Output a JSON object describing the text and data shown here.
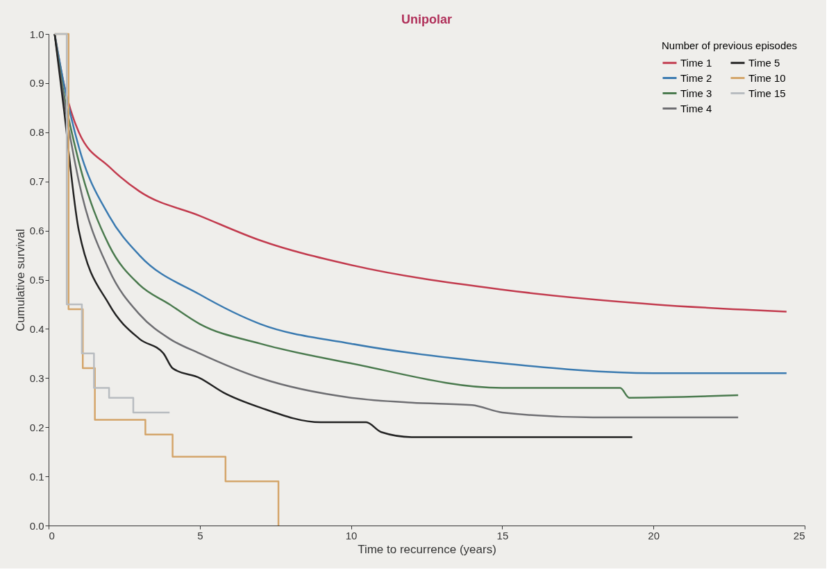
{
  "chart_data": {
    "type": "line",
    "title": "Unipolar",
    "xlabel": "Time to recurrence (years)",
    "ylabel": "Cumulative survival",
    "legend_title": "Number of previous episodes",
    "xlim": [
      0,
      25
    ],
    "xticks": [
      0,
      5,
      10,
      15,
      20,
      25
    ],
    "ylim": [
      0,
      1
    ],
    "yticks": [
      {
        "value": 0,
        "label": "0.0"
      },
      0.1,
      0.2,
      0.3,
      0.4,
      0.5,
      0.6,
      0.7,
      0.8,
      0.9,
      {
        "value": 1,
        "label": "1.0"
      }
    ],
    "grid": false,
    "legend": "top right",
    "marker": "none",
    "line_style": "solid",
    "series": [
      {
        "name": "Time 1",
        "color": "#c23b4e",
        "x": [
          0.2,
          0.5,
          1,
          2,
          3,
          5,
          7,
          10,
          15,
          20,
          24.4
        ],
        "values": [
          1.0,
          0.9,
          0.8,
          0.73,
          0.68,
          0.63,
          0.58,
          0.53,
          0.48,
          0.45,
          0.435
        ]
      },
      {
        "name": "Time 2",
        "color": "#3a7ab0",
        "x": [
          0.2,
          0.5,
          1,
          2,
          3,
          5,
          7,
          10,
          15,
          20,
          24.4
        ],
        "values": [
          1.0,
          0.9,
          0.77,
          0.63,
          0.55,
          0.47,
          0.41,
          0.37,
          0.33,
          0.31,
          0.31
        ]
      },
      {
        "name": "Time 3",
        "color": "#4a7a4e",
        "x": [
          0.2,
          0.5,
          1,
          2,
          3,
          4,
          5,
          7,
          10,
          15,
          18.9,
          19.2,
          22.8
        ],
        "values": [
          1.0,
          0.88,
          0.74,
          0.57,
          0.49,
          0.45,
          0.41,
          0.37,
          0.33,
          0.28,
          0.28,
          0.26,
          0.265
        ]
      },
      {
        "name": "Time 4",
        "color": "#6e6e72",
        "x": [
          0.2,
          0.5,
          1,
          2,
          3,
          4,
          5,
          7,
          10,
          12,
          14,
          15,
          18,
          22.8
        ],
        "values": [
          1.0,
          0.87,
          0.7,
          0.52,
          0.43,
          0.38,
          0.35,
          0.3,
          0.26,
          0.25,
          0.245,
          0.23,
          0.22,
          0.22
        ]
      },
      {
        "name": "Time 5",
        "color": "#222222",
        "x": [
          0.2,
          0.5,
          1,
          2,
          3,
          3.8,
          4.1,
          5,
          5.8,
          7,
          9,
          10.5,
          11,
          12,
          19.3
        ],
        "values": [
          1.0,
          0.85,
          0.6,
          0.45,
          0.38,
          0.35,
          0.32,
          0.3,
          0.27,
          0.24,
          0.21,
          0.21,
          0.19,
          0.18,
          0.18
        ]
      },
      {
        "name": "Time 10",
        "type": "step",
        "color": "#d4a56a",
        "x": [
          0.2,
          0.66,
          1.13,
          1.53,
          3.2,
          4.1,
          5.85,
          7.6
        ],
        "values": [
          1.0,
          0.44,
          0.32,
          0.215,
          0.185,
          0.14,
          0.09,
          0.0
        ]
      },
      {
        "name": "Time 15",
        "type": "step",
        "color": "#b8bcc0",
        "x": [
          0.2,
          0.6,
          1.1,
          1.5,
          2.0,
          2.8,
          4.0
        ],
        "values": [
          1.0,
          0.45,
          0.35,
          0.28,
          0.26,
          0.23,
          0.23
        ]
      }
    ]
  }
}
